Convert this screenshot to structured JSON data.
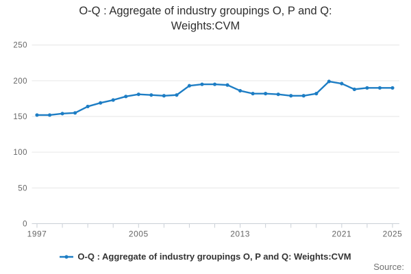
{
  "title": "O-Q : Aggregate of industry groupings O, P and Q: Weights:CVM",
  "legend": {
    "label": "O-Q : Aggregate of industry groupings O, P and Q: Weights:CVM"
  },
  "source_label": "Source:",
  "colors": {
    "line": "#1d7dc4",
    "grid": "#e6e6e6",
    "axis": "#c9cfd6",
    "tick_label": "#666666",
    "title_text": "#2e2e2e",
    "legend_text": "#333333",
    "source_text": "#707070"
  },
  "chart_data": {
    "type": "line",
    "title": "O-Q : Aggregate of industry groupings O, P and Q: Weights:CVM",
    "xlabel": "",
    "ylabel": "",
    "xlim": [
      1997,
      2025
    ],
    "ylim": [
      0,
      250
    ],
    "yticks": [
      0,
      50,
      100,
      150,
      200,
      250
    ],
    "xtick_labels": [
      1997,
      2005,
      2013,
      2021,
      2025
    ],
    "xminor_tick_step": 2,
    "grid": true,
    "legend_position": "bottom",
    "x": [
      1997,
      1998,
      1999,
      2000,
      2001,
      2002,
      2003,
      2004,
      2005,
      2006,
      2007,
      2008,
      2009,
      2010,
      2011,
      2012,
      2013,
      2014,
      2015,
      2016,
      2017,
      2018,
      2019,
      2020,
      2021,
      2022,
      2023,
      2024,
      2025
    ],
    "series": [
      {
        "name": "O-Q : Aggregate of industry groupings O, P and Q: Weights:CVM",
        "values": [
          152,
          152,
          154,
          155,
          164,
          169,
          173,
          178,
          181,
          180,
          179,
          180,
          193,
          195,
          195,
          194,
          186,
          182,
          182,
          181,
          179,
          179,
          182,
          199,
          196,
          188,
          190,
          190,
          190
        ]
      }
    ]
  }
}
